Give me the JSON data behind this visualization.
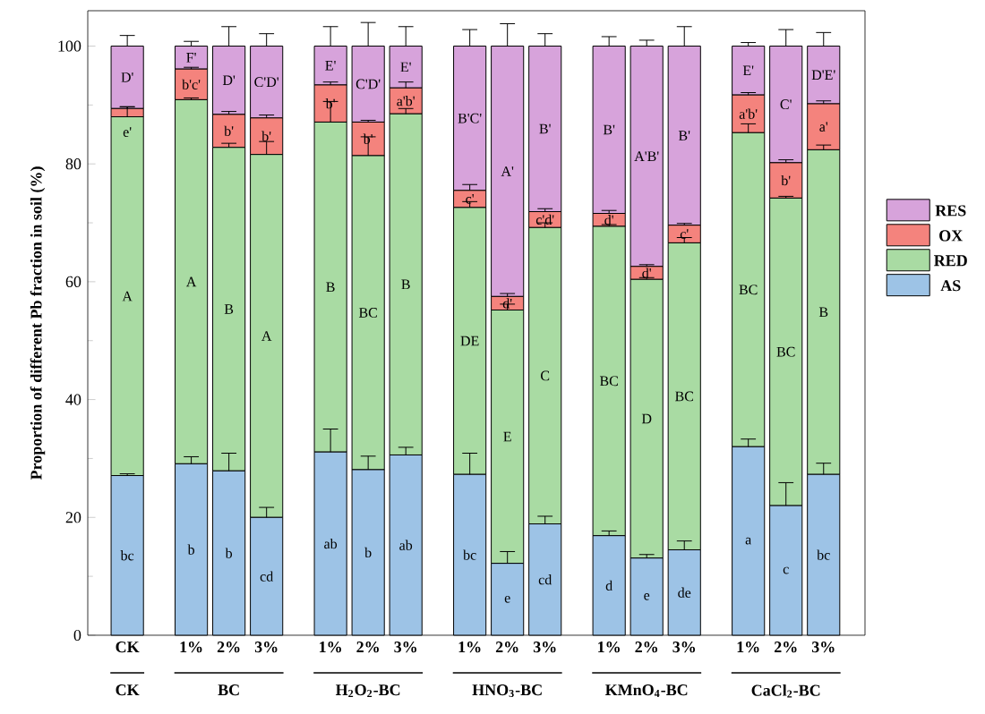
{
  "chart_data": {
    "type": "bar",
    "stacked": true,
    "ylabel": "Proportion of different Pb fraction in soil (%)",
    "categories": [
      "CK",
      "1%",
      "2%",
      "3%",
      "1%",
      "2%",
      "3%",
      "1%",
      "2%",
      "3%",
      "1%",
      "2%",
      "3%",
      "1%",
      "2%",
      "3%"
    ],
    "annotations": [
      "CK",
      "BC",
      "H$_{2}$O$_{2}$-BC",
      "HNO$_{3}$-BC",
      "KMnO$_{4}$-BC",
      "CaCl$_{2}$-BC"
    ],
    "ylim": [
      0,
      106
    ],
    "yticks": [
      0,
      20,
      40,
      60,
      80,
      100
    ],
    "legend": "right",
    "series": [
      {
        "name": "AS",
        "color": "#9dc3e6",
        "values": [
          27.1,
          29.1,
          27.9,
          20.0,
          31.1,
          28.1,
          30.6,
          27.3,
          12.2,
          18.9,
          16.9,
          13.1,
          14.5,
          32.0,
          22.0,
          27.3
        ],
        "errors": [
          0.3,
          1.2,
          3.0,
          1.7,
          3.9,
          2.3,
          1.3,
          3.6,
          2.0,
          1.3,
          0.8,
          0.6,
          1.5,
          1.3,
          3.9,
          1.9
        ],
        "value_labels": [
          "bc",
          "b",
          "b",
          "cd",
          "ab",
          "b",
          "ab",
          "bc",
          "e",
          "cd",
          "d",
          "e",
          "de",
          "a",
          "c",
          "bc"
        ]
      },
      {
        "name": "RED",
        "color": "#a9dba3",
        "values": [
          60.9,
          61.8,
          54.9,
          61.6,
          56.0,
          53.3,
          57.9,
          45.3,
          43.0,
          50.3,
          52.5,
          47.3,
          52.1,
          53.3,
          52.2,
          55.1
        ],
        "errors": [
          1.7,
          0.3,
          0.7,
          2.2,
          3.5,
          3.2,
          0.9,
          1.0,
          1.0,
          0.8,
          0.3,
          0.3,
          0.9,
          1.5,
          0.3,
          0.8
        ],
        "value_labels": [
          "A",
          "A",
          "B",
          "A",
          "B",
          "BC",
          "B",
          "DE",
          "E",
          "C",
          "BC",
          "D",
          "BC",
          "BC",
          "BC",
          "B"
        ]
      },
      {
        "name": "OX",
        "color": "#f4837d",
        "values": [
          1.4,
          5.2,
          5.6,
          6.2,
          6.3,
          5.7,
          4.4,
          2.9,
          2.3,
          2.7,
          2.2,
          2.2,
          3.0,
          6.4,
          6.0,
          7.8
        ],
        "errors": [
          0.3,
          0.3,
          0.5,
          0.5,
          0.5,
          0.3,
          1.0,
          1.0,
          0.5,
          0.5,
          0.5,
          0.3,
          0.3,
          0.4,
          0.5,
          0.5
        ],
        "value_labels": [
          "e'",
          "b'c'",
          "b'",
          "b'",
          "b'",
          "b'",
          "a'b'",
          "c'",
          "d'",
          "c'd'",
          "d'",
          "d'",
          "c'",
          "a'b'",
          "b'",
          "a'"
        ]
      },
      {
        "name": "RES",
        "color": "#d7a3db",
        "values": [
          10.6,
          3.9,
          11.6,
          12.2,
          6.6,
          12.9,
          7.1,
          24.5,
          42.5,
          28.1,
          28.4,
          37.4,
          30.4,
          8.3,
          19.8,
          9.8
        ],
        "errors": [
          1.8,
          0.8,
          3.3,
          2.1,
          3.3,
          4.0,
          3.3,
          2.8,
          3.8,
          2.1,
          1.6,
          1.0,
          3.3,
          0.6,
          2.8,
          2.3
        ],
        "value_labels": [
          "D'",
          "F'",
          "D'",
          "C'D'",
          "E'",
          "C'D'",
          "E'",
          "B'C'",
          "A'",
          "B'",
          "B'",
          "A'B'",
          "B'",
          "E'",
          "C'",
          "D'E'"
        ]
      }
    ]
  }
}
